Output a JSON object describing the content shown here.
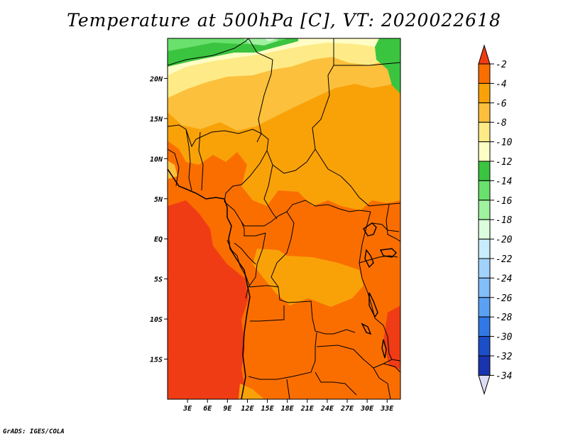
{
  "title": "Temperature at 500hPa [C], VT: 2020022618",
  "credit": "GrADS: IGES/COLA",
  "map": {
    "variable": "Temperature at 500hPa",
    "units": "C",
    "valid_time": "2020022618",
    "lon_range": [
      0,
      35
    ],
    "lat_range": [
      -20,
      25
    ],
    "lat_ticks": [
      "20N",
      "15N",
      "10N",
      "5N",
      "EQ",
      "5S",
      "10S",
      "15S"
    ],
    "lat_values": [
      20,
      15,
      10,
      5,
      0,
      -5,
      -10,
      -15
    ],
    "lon_ticks": [
      "3E",
      "6E",
      "9E",
      "12E",
      "15E",
      "18E",
      "21E",
      "24E",
      "27E",
      "30E",
      "33E"
    ],
    "lon_values": [
      3,
      6,
      9,
      12,
      15,
      18,
      21,
      24,
      27,
      30,
      33
    ]
  },
  "colorbar": {
    "levels": [
      "-2",
      "-4",
      "-6",
      "-8",
      "-10",
      "-12",
      "-14",
      "-16",
      "-18",
      "-20",
      "-22",
      "-24",
      "-26",
      "-28",
      "-30",
      "-32",
      "-34"
    ],
    "colors": [
      "#f03c14",
      "#fa6e00",
      "#f9a208",
      "#fcc03c",
      "#feeb87",
      "#fffdc6",
      "#3bc43f",
      "#6ae06d",
      "#9ff29f",
      "#dcfddd",
      "#c8ebfd",
      "#a0d2fb",
      "#82bef7",
      "#5aa1f4",
      "#3078e6",
      "#1c4ec8",
      "#1a34b0",
      "#07087c"
    ],
    "top_arrow_color": "#f03c14",
    "bottom_arrow_color": "#dcdcf5"
  }
}
